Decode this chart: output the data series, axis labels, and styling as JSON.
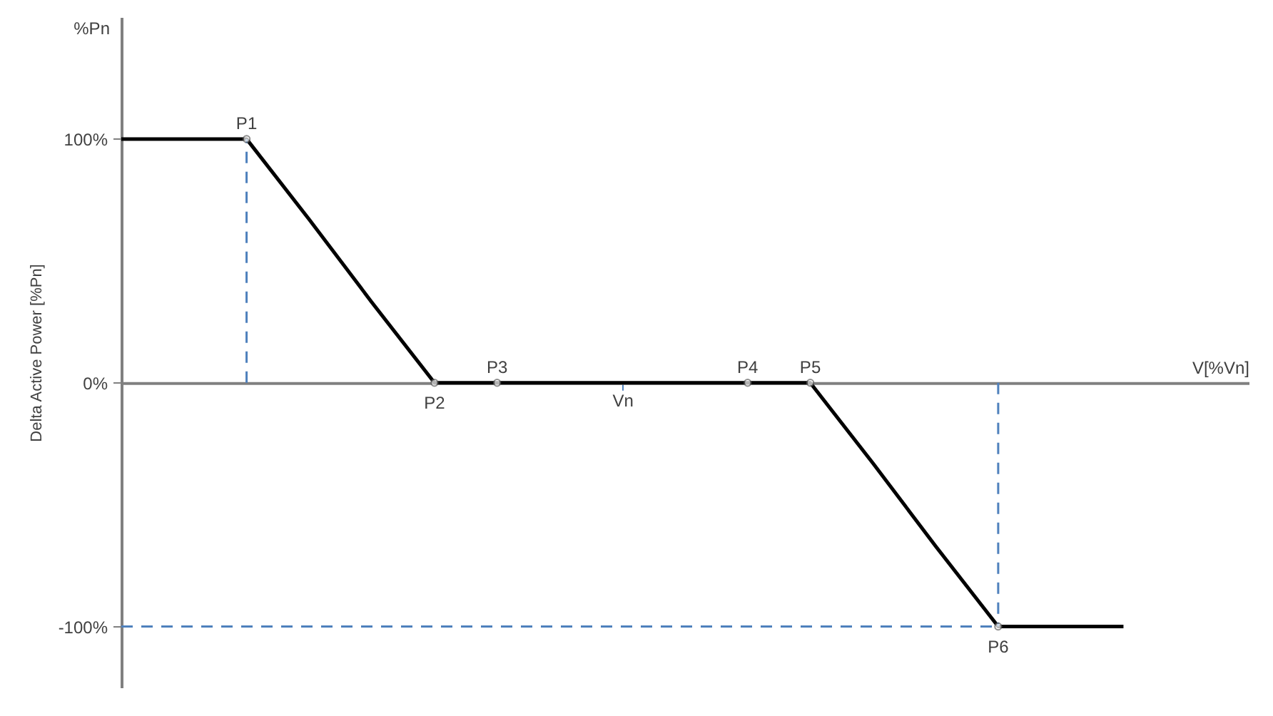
{
  "chart_data": {
    "type": "line",
    "xlabel": "V[%Vn]",
    "ylabel": "Delta Active Power [%Pn]",
    "annotations": [
      "%Pn"
    ],
    "categories": [
      null,
      null,
      null,
      null,
      null,
      null,
      null,
      null,
      "Vn",
      null,
      null,
      null,
      null,
      null,
      null,
      null,
      null,
      null,
      null
    ],
    "ylim": [
      -125,
      150
    ],
    "yticks": [
      {
        "value": -100,
        "label": "-100%"
      },
      {
        "value": 0,
        "label": "0%"
      },
      {
        "value": 100,
        "label": "100%"
      }
    ],
    "series": [
      {
        "color": "#000000",
        "values": [
          100,
          100,
          100,
          67,
          33,
          0,
          0,
          0,
          0,
          0,
          0,
          0,
          -33,
          -67,
          -100,
          -100,
          -100,
          null,
          null
        ],
        "value_labels": [
          null,
          null,
          "P1",
          null,
          null,
          "P2",
          "P3",
          null,
          null,
          null,
          "P4",
          "P5",
          null,
          null,
          "P6",
          null,
          null,
          null,
          null
        ]
      }
    ],
    "ref_lines": [
      {
        "axis": "y",
        "value": -100,
        "color": "#4f81bd",
        "line_style": "dashed"
      }
    ]
  }
}
